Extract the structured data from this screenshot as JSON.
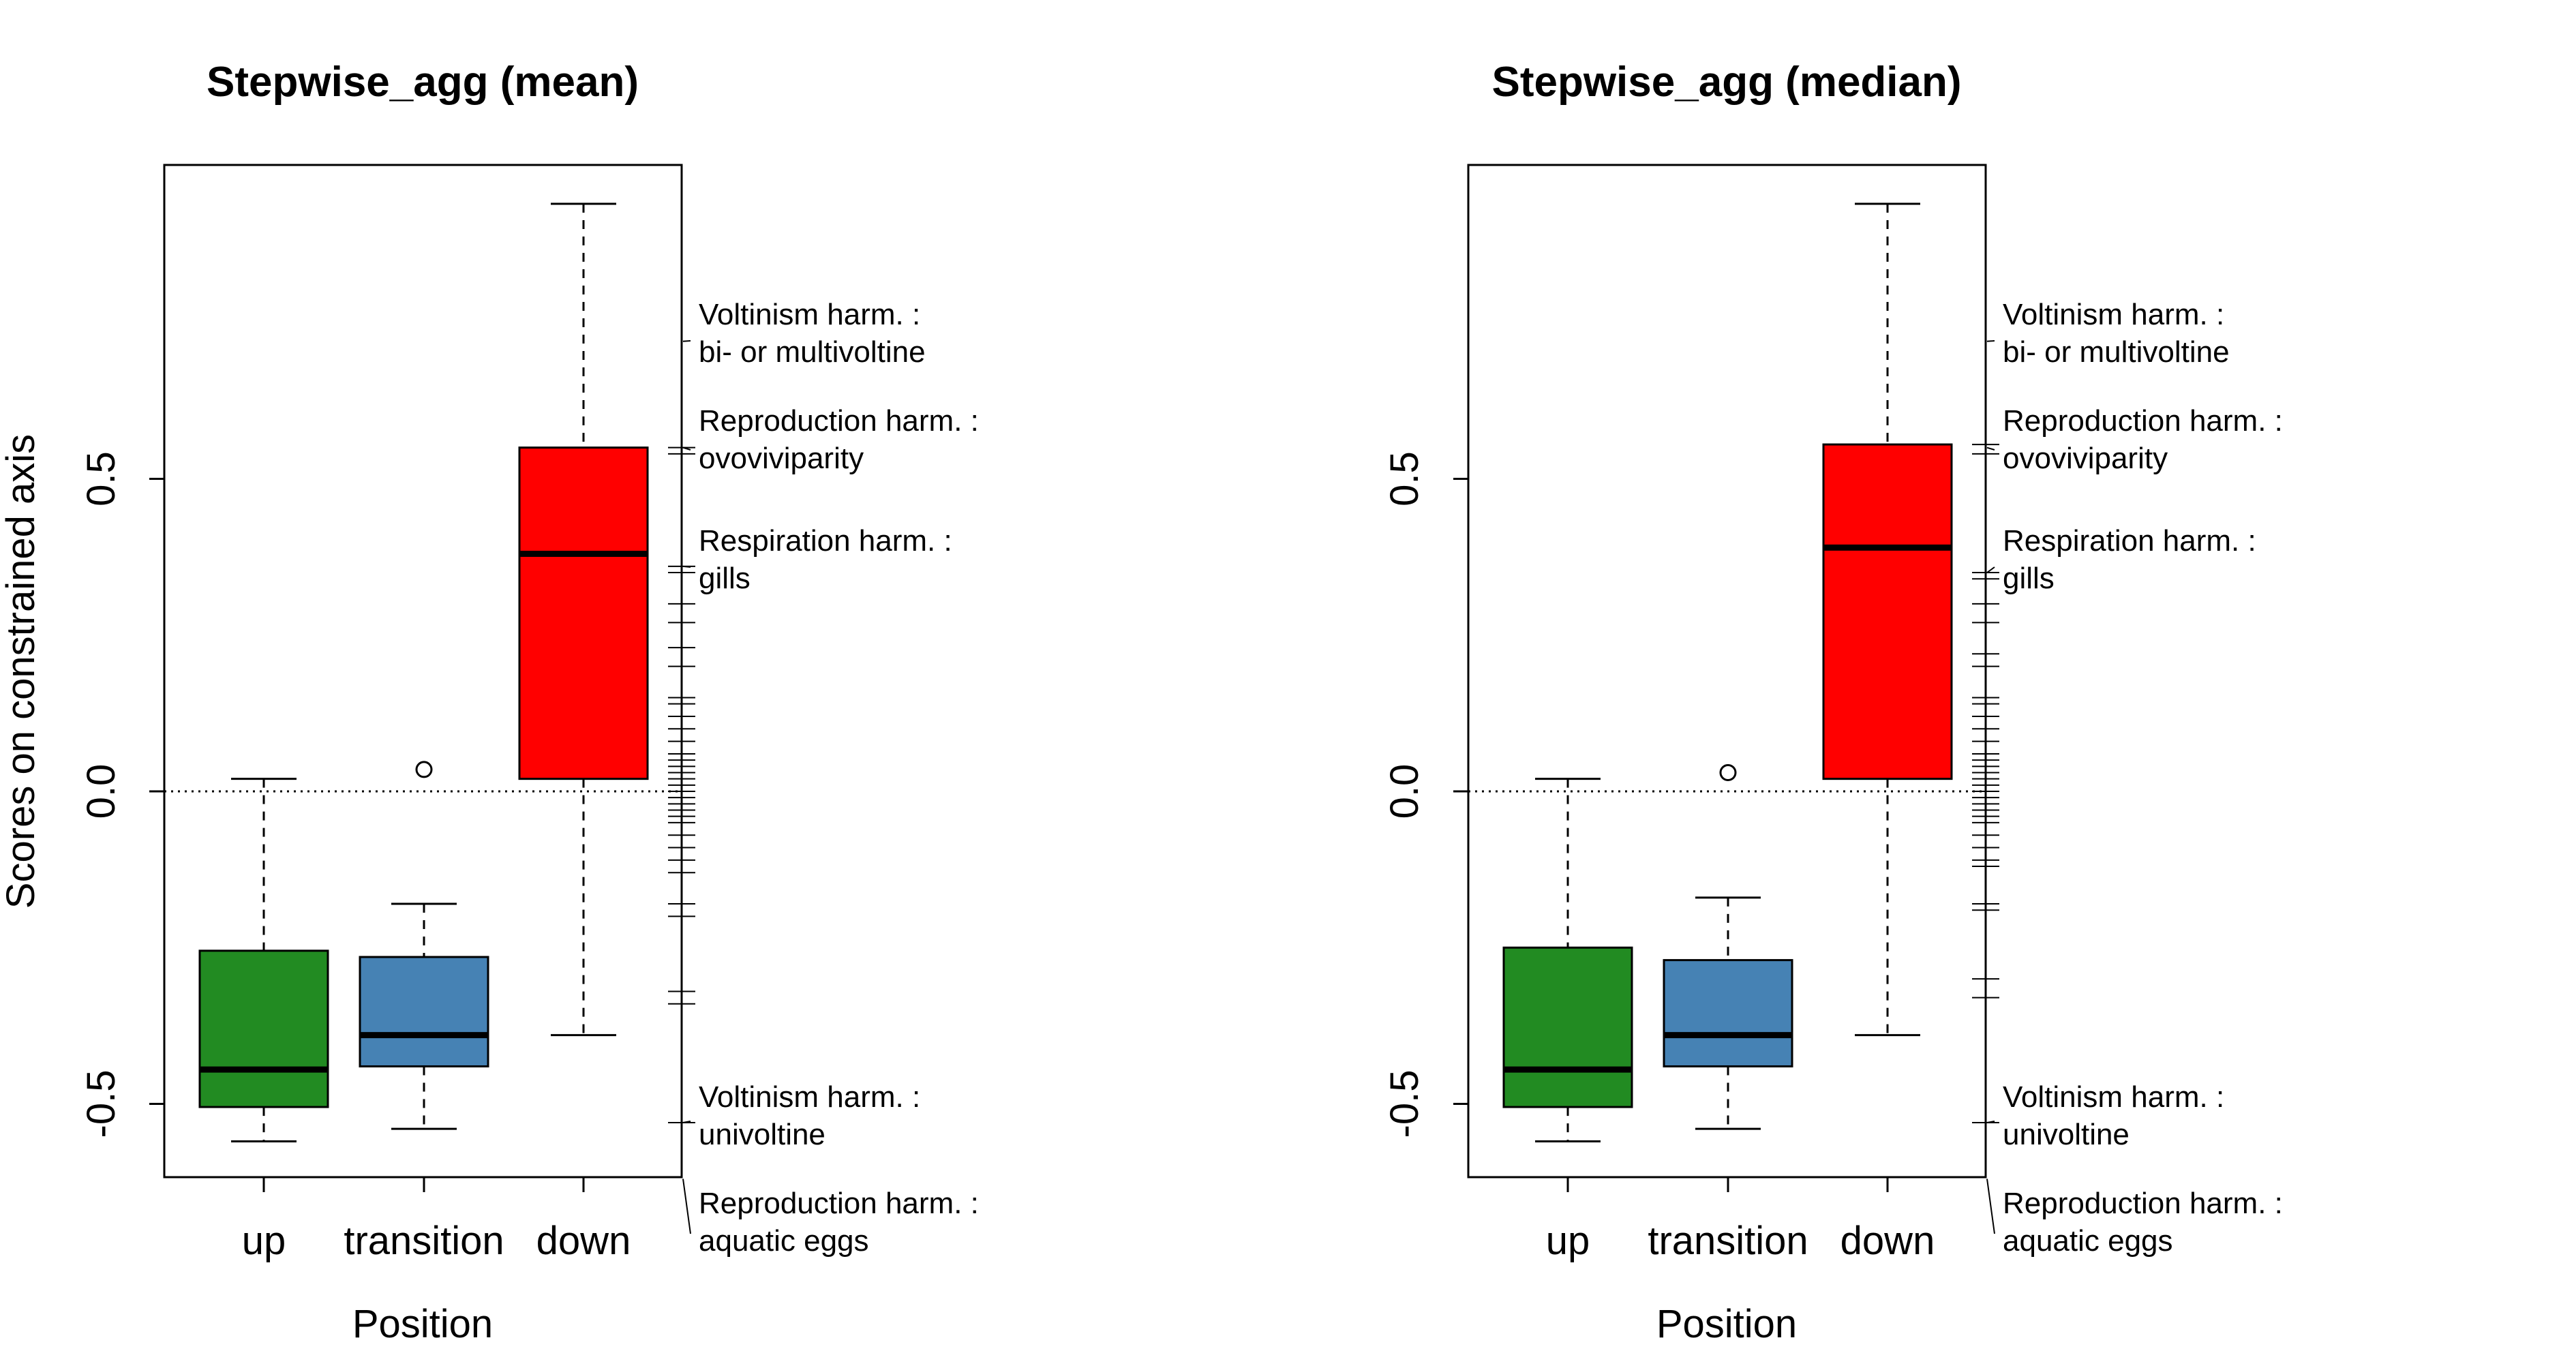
{
  "chart_data": [
    {
      "type": "box",
      "title": "Stepwise_agg (mean)",
      "xlabel": "Position",
      "ylabel": "Scores on constrained axis",
      "ylim": [
        -0.62,
        1.0
      ],
      "yticks": [
        -0.5,
        0.0,
        0.5
      ],
      "ytick_labels": [
        "-0.5",
        "0.0",
        "0.5"
      ],
      "reference_line": 0,
      "categories": [
        "up",
        "transition",
        "down"
      ],
      "boxes": [
        {
          "category": "up",
          "color": "#228B22",
          "whisker_low": -0.56,
          "q1": -0.505,
          "median": -0.445,
          "q3": -0.255,
          "whisker_high": 0.02,
          "outliers": []
        },
        {
          "category": "transition",
          "color": "#4682B4",
          "whisker_low": -0.54,
          "q1": -0.44,
          "median": -0.39,
          "q3": -0.265,
          "whisker_high": -0.18,
          "outliers": [
            0.035
          ]
        },
        {
          "category": "down",
          "color": "#FF0000",
          "whisker_low": -0.39,
          "q1": 0.02,
          "median": 0.38,
          "q3": 0.55,
          "whisker_high": 0.94,
          "outliers": []
        }
      ],
      "trait_rug": [
        0.55,
        0.54,
        0.36,
        0.35,
        0.3,
        0.27,
        0.23,
        0.2,
        0.15,
        0.14,
        0.12,
        0.1,
        0.08,
        0.06,
        0.05,
        0.04,
        0.03,
        0.02,
        0.01,
        0.0,
        -0.01,
        -0.02,
        -0.03,
        -0.04,
        -0.05,
        -0.07,
        -0.09,
        -0.11,
        -0.13,
        -0.18,
        -0.2,
        -0.32,
        -0.34,
        -0.53
      ],
      "annotations": [
        {
          "line1": "Voltinism harm. :",
          "line2": " bi- or multivoltine",
          "value": 0.72
        },
        {
          "line1": "Reproduction harm. :",
          "line2": " ovoviviparity",
          "value": 0.55
        },
        {
          "line1": "Respiration harm. :",
          "line2": " gills",
          "value": 0.36
        },
        {
          "line1": "Voltinism harm. :",
          "line2": " univoltine",
          "value": -0.53
        },
        {
          "line1": "Reproduction harm. :",
          "line2": " aquatic eggs",
          "value": -0.62
        }
      ]
    },
    {
      "type": "box",
      "title": "Stepwise_agg (median)",
      "xlabel": "Position",
      "ylabel": "",
      "ylim": [
        -0.62,
        1.0
      ],
      "yticks": [
        -0.5,
        0.0,
        0.5
      ],
      "ytick_labels": [
        "-0.5",
        "0.0",
        "0.5"
      ],
      "reference_line": 0,
      "categories": [
        "up",
        "transition",
        "down"
      ],
      "boxes": [
        {
          "category": "up",
          "color": "#228B22",
          "whisker_low": -0.56,
          "q1": -0.505,
          "median": -0.445,
          "q3": -0.25,
          "whisker_high": 0.02,
          "outliers": []
        },
        {
          "category": "transition",
          "color": "#4682B4",
          "whisker_low": -0.54,
          "q1": -0.44,
          "median": -0.39,
          "q3": -0.27,
          "whisker_high": -0.17,
          "outliers": [
            0.03
          ]
        },
        {
          "category": "down",
          "color": "#FF0000",
          "whisker_low": -0.39,
          "q1": 0.02,
          "median": 0.39,
          "q3": 0.555,
          "whisker_high": 0.94,
          "outliers": []
        }
      ],
      "trait_rug": [
        0.555,
        0.54,
        0.35,
        0.34,
        0.3,
        0.27,
        0.22,
        0.2,
        0.15,
        0.14,
        0.12,
        0.1,
        0.08,
        0.06,
        0.05,
        0.04,
        0.03,
        0.02,
        0.01,
        0.0,
        -0.01,
        -0.02,
        -0.03,
        -0.04,
        -0.05,
        -0.07,
        -0.09,
        -0.11,
        -0.12,
        -0.18,
        -0.19,
        -0.3,
        -0.33,
        -0.53
      ],
      "annotations": [
        {
          "line1": "Voltinism harm. :",
          "line2": " bi- or multivoltine",
          "value": 0.72
        },
        {
          "line1": "Reproduction harm. :",
          "line2": " ovoviviparity",
          "value": 0.55
        },
        {
          "line1": "Respiration harm. :",
          "line2": " gills",
          "value": 0.35
        },
        {
          "line1": "Voltinism harm. :",
          "line2": " univoltine",
          "value": -0.53
        },
        {
          "line1": "Reproduction harm. :",
          "line2": " aquatic eggs",
          "value": -0.62
        }
      ]
    }
  ]
}
